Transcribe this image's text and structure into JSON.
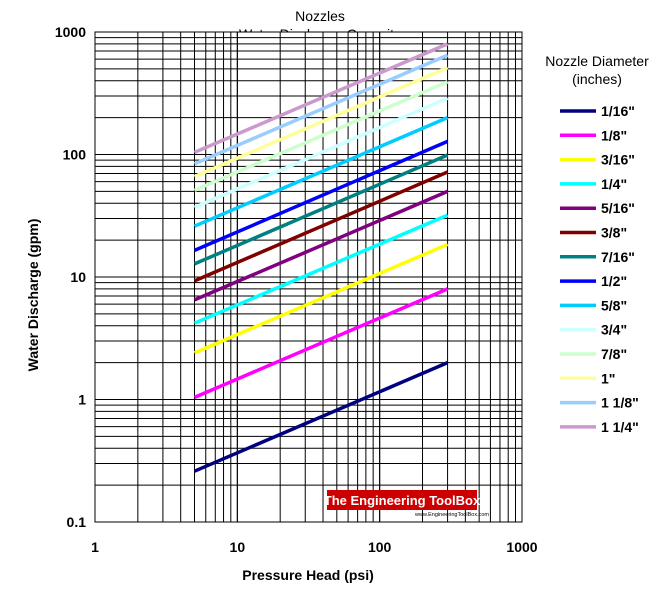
{
  "chart_data": {
    "type": "line",
    "title": "Nozzles",
    "subtitle": "Water Discharge Capacity",
    "xlabel": "Pressure Head (psi)",
    "ylabel": "Water Discharge (gpm)",
    "xscale": "log",
    "yscale": "log",
    "xlim": [
      1,
      1000
    ],
    "ylim": [
      0.1,
      1000
    ],
    "x_ticks": [
      1,
      10,
      100,
      1000
    ],
    "x_tick_labels": [
      "1",
      "10",
      "100",
      "1000"
    ],
    "y_ticks": [
      0.1,
      1,
      10,
      100,
      1000
    ],
    "y_tick_labels": [
      "0.1",
      "1",
      "10",
      "100",
      "1000"
    ],
    "grid": true,
    "legend_title_line1": "Nozzle Diameter",
    "legend_title_line2": "(inches)",
    "legend_position": "right",
    "x": [
      5,
      300
    ],
    "series": [
      {
        "name": "1/16\"",
        "color": "#000080",
        "values": [
          0.26,
          2.0
        ]
      },
      {
        "name": "1/8\"",
        "color": "#ff00ff",
        "values": [
          1.04,
          8.0
        ]
      },
      {
        "name": "3/16\"",
        "color": "#ffff00",
        "values": [
          2.4,
          18.5
        ]
      },
      {
        "name": "1/4\"",
        "color": "#00ffff",
        "values": [
          4.2,
          32.0
        ]
      },
      {
        "name": "5/16\"",
        "color": "#800080",
        "values": [
          6.5,
          50.0
        ]
      },
      {
        "name": "3/8\"",
        "color": "#800000",
        "values": [
          9.3,
          72.0
        ]
      },
      {
        "name": "7/16\"",
        "color": "#008080",
        "values": [
          12.8,
          99.0
        ]
      },
      {
        "name": "1/2\"",
        "color": "#0000ff",
        "values": [
          16.5,
          128.0
        ]
      },
      {
        "name": "5/8\"",
        "color": "#00ccff",
        "values": [
          26.0,
          200.0
        ]
      },
      {
        "name": "3/4\"",
        "color": "#ccffff",
        "values": [
          37.0,
          288.0
        ]
      },
      {
        "name": "7/8\"",
        "color": "#ccffcc",
        "values": [
          51.0,
          392.0
        ]
      },
      {
        "name": "1\"",
        "color": "#ffff99",
        "values": [
          66.0,
          512.0
        ]
      },
      {
        "name": "1 1/8\"",
        "color": "#99ccff",
        "values": [
          84.0,
          648.0
        ]
      },
      {
        "name": "1 1/4\"",
        "color": "#cc99cc",
        "values": [
          104.0,
          800.0
        ]
      }
    ]
  },
  "brand": {
    "name": "The Engineering ToolBox",
    "url": "www.EngineeringToolBox.com",
    "color": "#cc0000"
  }
}
